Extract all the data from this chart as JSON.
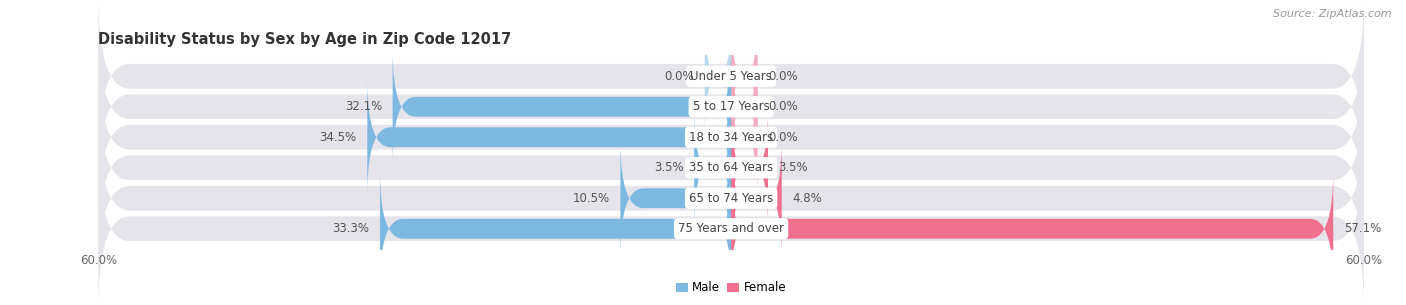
{
  "title": "Disability Status by Sex by Age in Zip Code 12017",
  "source": "Source: ZipAtlas.com",
  "categories": [
    "Under 5 Years",
    "5 to 17 Years",
    "18 to 34 Years",
    "35 to 64 Years",
    "65 to 74 Years",
    "75 Years and over"
  ],
  "male_values": [
    0.0,
    32.1,
    34.5,
    3.5,
    10.5,
    33.3
  ],
  "female_values": [
    0.0,
    0.0,
    0.0,
    3.5,
    4.8,
    57.1
  ],
  "male_color": "#7db8e0",
  "female_color": "#f07090",
  "male_color_0": "#b8d8ee",
  "female_color_0": "#f4aabf",
  "row_bg_color": "#e4e4ea",
  "max_value": 60.0,
  "legend_male": "Male",
  "legend_female": "Female",
  "title_fontsize": 10.5,
  "source_fontsize": 8,
  "label_fontsize": 8.5,
  "category_fontsize": 8.5,
  "axis_label_fontsize": 8.5,
  "background_color": "#ffffff"
}
